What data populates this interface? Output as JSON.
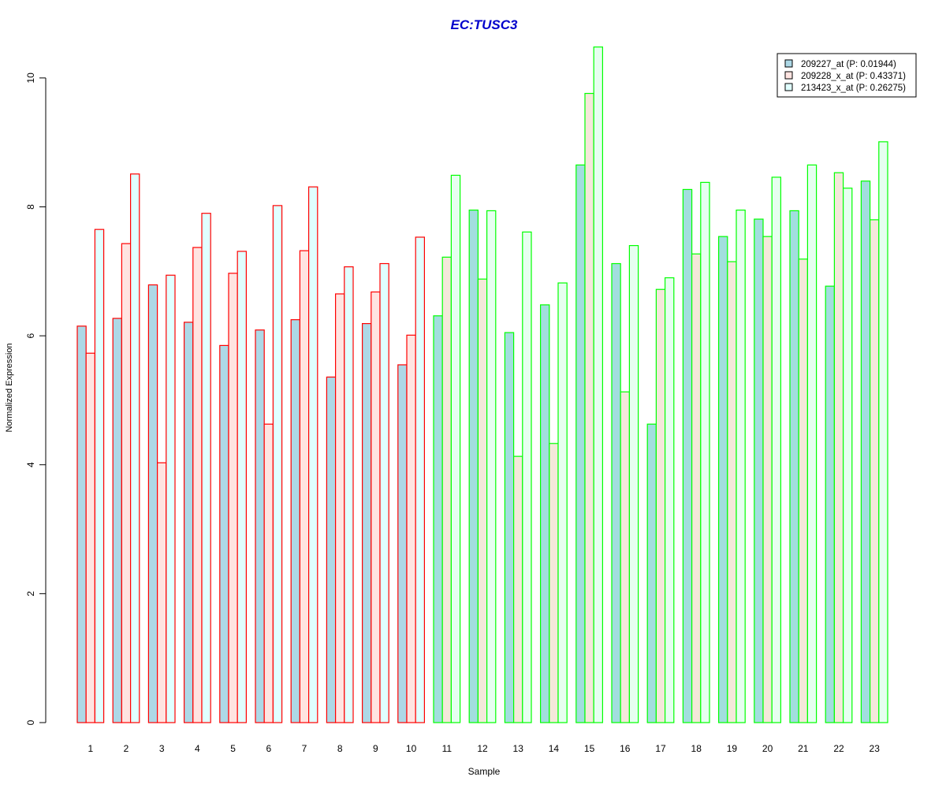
{
  "chart_data": {
    "type": "bar",
    "title": "EC:TUSC3",
    "xlabel": "Sample",
    "ylabel": "Normalized Expression",
    "ylim": [
      0,
      10.5
    ],
    "yticks": [
      0,
      2,
      4,
      6,
      8,
      10
    ],
    "grid": false,
    "legend_position": "top-right",
    "categories": [
      "1",
      "2",
      "3",
      "4",
      "5",
      "6",
      "7",
      "8",
      "9",
      "10",
      "11",
      "12",
      "13",
      "14",
      "15",
      "16",
      "17",
      "18",
      "19",
      "20",
      "21",
      "22",
      "23"
    ],
    "series": [
      {
        "name": "209227_at (P: 0.01944)",
        "fill": "#add8e6",
        "values": [
          6.15,
          6.27,
          6.79,
          6.21,
          5.85,
          6.09,
          6.25,
          5.36,
          6.19,
          5.55,
          6.31,
          7.95,
          6.05,
          6.48,
          8.65,
          7.12,
          4.63,
          8.27,
          7.54,
          7.81,
          7.94,
          6.77,
          8.4
        ]
      },
      {
        "name": "209228_x_at (P: 0.43371)",
        "fill": "#ffe4e1",
        "values": [
          5.73,
          7.43,
          4.03,
          7.37,
          6.97,
          4.63,
          7.32,
          6.65,
          6.68,
          6.01,
          7.22,
          6.88,
          4.13,
          4.33,
          9.76,
          5.13,
          6.72,
          7.27,
          7.15,
          7.54,
          7.19,
          8.53,
          7.8
        ]
      },
      {
        "name": "213423_x_at (P: 0.26275)",
        "fill": "#e0ffff",
        "values": [
          7.65,
          8.51,
          6.94,
          7.9,
          7.31,
          8.02,
          8.31,
          7.07,
          7.12,
          7.53,
          8.49,
          7.94,
          7.61,
          6.82,
          10.48,
          7.4,
          6.9,
          8.38,
          7.95,
          8.46,
          8.65,
          8.29,
          9.01
        ]
      }
    ],
    "group_colors": {
      "group1": "#ff0000",
      "group2": "#00ff00"
    },
    "sample_group": [
      "group1",
      "group1",
      "group1",
      "group1",
      "group1",
      "group1",
      "group1",
      "group1",
      "group1",
      "group1",
      "group2",
      "group2",
      "group2",
      "group2",
      "group2",
      "group2",
      "group2",
      "group2",
      "group2",
      "group2",
      "group2",
      "group2",
      "group2"
    ],
    "group2_fills": [
      "#a2dede",
      "#f4e8da",
      "#e6fff0"
    ],
    "title_color": "#0000cc",
    "legend_border": "#000000"
  }
}
